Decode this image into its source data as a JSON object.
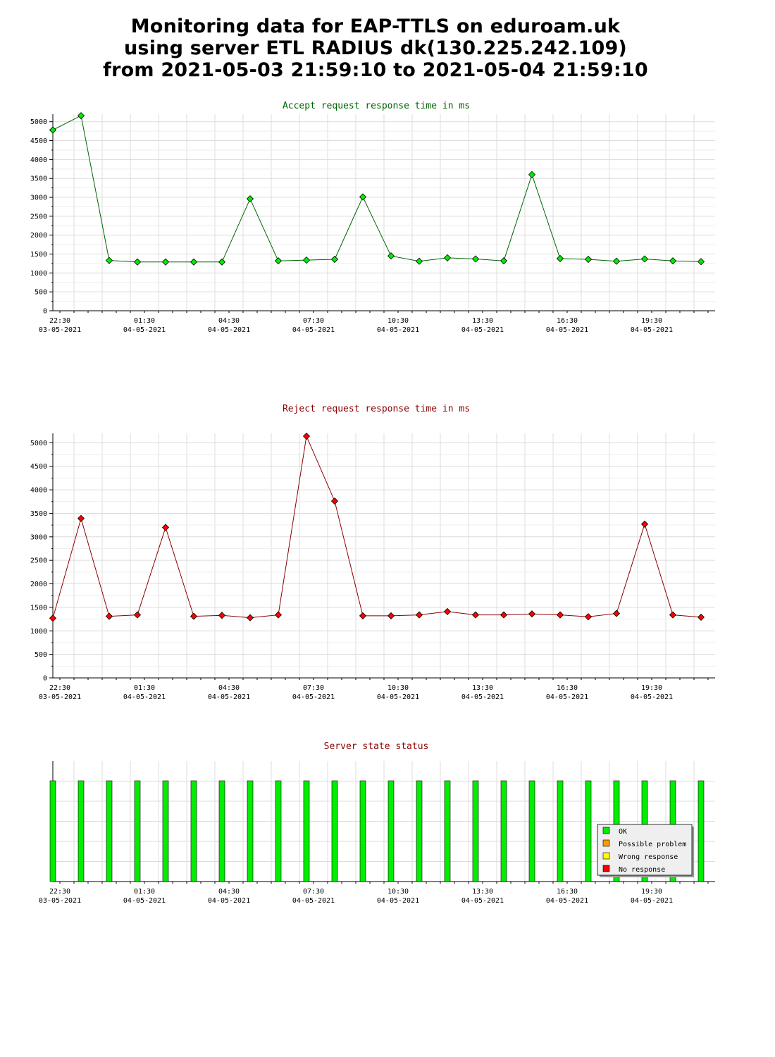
{
  "header": {
    "line1": "Monitoring data for EAP-TTLS on eduroam.uk",
    "line2": "using server ETL RADIUS dk(130.225.242.109)",
    "line3": "from 2021-05-03 21:59:10 to 2021-05-04 21:59:10"
  },
  "chart_data": [
    {
      "type": "line",
      "title": "Accept request response time in ms",
      "color": "#006400",
      "marker_color": "#00ee00",
      "xlabel": "",
      "ylabel": "",
      "grid": true,
      "x_range": [
        "2021-05-03 22:15",
        "2021-05-04 21:45"
      ],
      "ylim": [
        0,
        5200
      ],
      "y_ticks": [
        0,
        500,
        1000,
        1500,
        2000,
        2500,
        3000,
        3500,
        4000,
        4500,
        5000
      ],
      "x_tick_labels": [
        {
          "time": "22:30",
          "date": "03-05-2021"
        },
        {
          "time": "01:30",
          "date": "04-05-2021"
        },
        {
          "time": "04:30",
          "date": "04-05-2021"
        },
        {
          "time": "07:30",
          "date": "04-05-2021"
        },
        {
          "time": "10:30",
          "date": "04-05-2021"
        },
        {
          "time": "13:30",
          "date": "04-05-2021"
        },
        {
          "time": "16:30",
          "date": "04-05-2021"
        },
        {
          "time": "19:30",
          "date": "04-05-2021"
        }
      ],
      "x": [
        "2021-05-03 22:15",
        "2021-05-03 23:15",
        "2021-05-04 00:15",
        "2021-05-04 01:15",
        "2021-05-04 02:15",
        "2021-05-04 03:15",
        "2021-05-04 04:15",
        "2021-05-04 05:15",
        "2021-05-04 06:15",
        "2021-05-04 07:15",
        "2021-05-04 08:15",
        "2021-05-04 09:15",
        "2021-05-04 10:15",
        "2021-05-04 11:15",
        "2021-05-04 12:15",
        "2021-05-04 13:15",
        "2021-05-04 14:15",
        "2021-05-04 15:15",
        "2021-05-04 16:15",
        "2021-05-04 17:15",
        "2021-05-04 18:15",
        "2021-05-04 19:15",
        "2021-05-04 20:15",
        "2021-05-04 21:15"
      ],
      "values": [
        4780,
        5160,
        1330,
        1290,
        1290,
        1290,
        1290,
        2960,
        1320,
        1340,
        1360,
        3010,
        1450,
        1310,
        1400,
        1370,
        1320,
        3600,
        1380,
        1360,
        1310,
        1370,
        1320,
        1300
      ]
    },
    {
      "type": "line",
      "title": "Reject request response time in ms",
      "color": "#8b0000",
      "marker_color": "#ff0000",
      "xlabel": "",
      "ylabel": "",
      "grid": true,
      "x_range": [
        "2021-05-03 22:15",
        "2021-05-04 21:45"
      ],
      "ylim": [
        0,
        5200
      ],
      "y_ticks": [
        0,
        500,
        1000,
        1500,
        2000,
        2500,
        3000,
        3500,
        4000,
        4500,
        5000
      ],
      "x_tick_labels": [
        {
          "time": "22:30",
          "date": "03-05-2021"
        },
        {
          "time": "01:30",
          "date": "04-05-2021"
        },
        {
          "time": "04:30",
          "date": "04-05-2021"
        },
        {
          "time": "07:30",
          "date": "04-05-2021"
        },
        {
          "time": "10:30",
          "date": "04-05-2021"
        },
        {
          "time": "13:30",
          "date": "04-05-2021"
        },
        {
          "time": "16:30",
          "date": "04-05-2021"
        },
        {
          "time": "19:30",
          "date": "04-05-2021"
        }
      ],
      "x": [
        "2021-05-03 22:15",
        "2021-05-03 23:15",
        "2021-05-04 00:15",
        "2021-05-04 01:15",
        "2021-05-04 02:15",
        "2021-05-04 03:15",
        "2021-05-04 04:15",
        "2021-05-04 05:15",
        "2021-05-04 06:15",
        "2021-05-04 07:15",
        "2021-05-04 08:15",
        "2021-05-04 09:15",
        "2021-05-04 10:15",
        "2021-05-04 11:15",
        "2021-05-04 12:15",
        "2021-05-04 13:15",
        "2021-05-04 14:15",
        "2021-05-04 15:15",
        "2021-05-04 16:15",
        "2021-05-04 17:15",
        "2021-05-04 18:15",
        "2021-05-04 19:15",
        "2021-05-04 20:15",
        "2021-05-04 21:15"
      ],
      "values": [
        1270,
        3390,
        1310,
        1340,
        3200,
        1310,
        1330,
        1280,
        1340,
        5140,
        3760,
        1320,
        1320,
        1340,
        1410,
        1340,
        1340,
        1360,
        1340,
        1300,
        1370,
        3270,
        1340,
        1290
      ]
    },
    {
      "type": "bar",
      "title": "Server state status",
      "color": "#ee0000",
      "grid": true,
      "x_range": [
        "2021-05-03 22:15",
        "2021-05-04 21:45"
      ],
      "x_tick_labels": [
        {
          "time": "22:30",
          "date": "03-05-2021"
        },
        {
          "time": "01:30",
          "date": "04-05-2021"
        },
        {
          "time": "04:30",
          "date": "04-05-2021"
        },
        {
          "time": "07:30",
          "date": "04-05-2021"
        },
        {
          "time": "10:30",
          "date": "04-05-2021"
        },
        {
          "time": "13:30",
          "date": "04-05-2021"
        },
        {
          "time": "16:30",
          "date": "04-05-2021"
        },
        {
          "time": "19:30",
          "date": "04-05-2021"
        }
      ],
      "x": [
        "2021-05-03 22:15",
        "2021-05-03 23:15",
        "2021-05-04 00:15",
        "2021-05-04 01:15",
        "2021-05-04 02:15",
        "2021-05-04 03:15",
        "2021-05-04 04:15",
        "2021-05-04 05:15",
        "2021-05-04 06:15",
        "2021-05-04 07:15",
        "2021-05-04 08:15",
        "2021-05-04 09:15",
        "2021-05-04 10:15",
        "2021-05-04 11:15",
        "2021-05-04 12:15",
        "2021-05-04 13:15",
        "2021-05-04 14:15",
        "2021-05-04 15:15",
        "2021-05-04 16:15",
        "2021-05-04 17:15",
        "2021-05-04 18:15",
        "2021-05-04 19:15",
        "2021-05-04 20:15",
        "2021-05-04 21:15"
      ],
      "status": [
        "OK",
        "OK",
        "OK",
        "OK",
        "OK",
        "OK",
        "OK",
        "OK",
        "OK",
        "OK",
        "OK",
        "OK",
        "OK",
        "OK",
        "OK",
        "OK",
        "OK",
        "OK",
        "OK",
        "OK",
        "OK",
        "OK",
        "OK",
        "OK"
      ],
      "legend_position": "bottom-right",
      "legend": [
        {
          "label": "OK",
          "color": "#00ee00"
        },
        {
          "label": "Possible problem",
          "color": "#ff9900"
        },
        {
          "label": "Wrong response",
          "color": "#ffff00"
        },
        {
          "label": "No response",
          "color": "#ee0000"
        }
      ]
    }
  ]
}
